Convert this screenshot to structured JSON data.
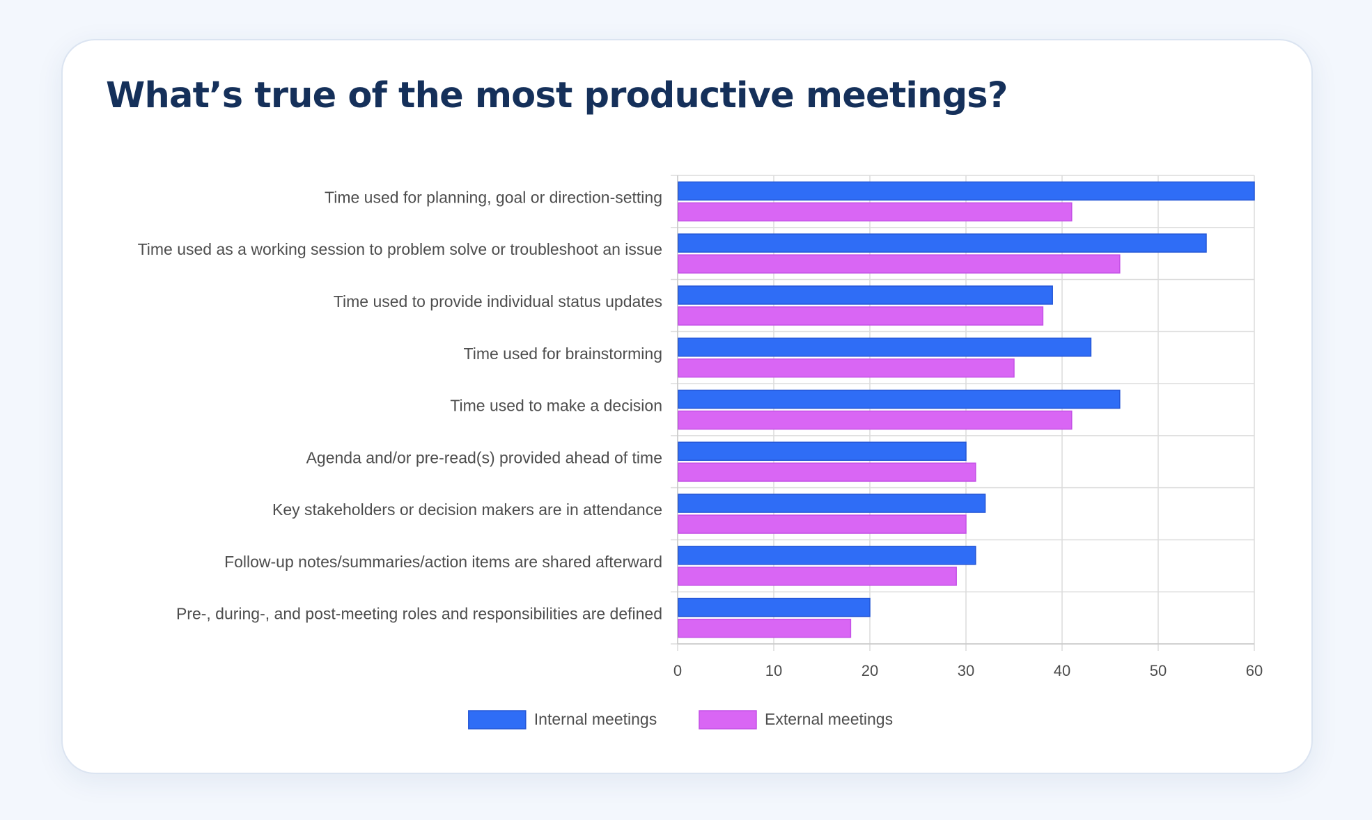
{
  "page": {
    "title": "What’s true of the most productive meetings?"
  },
  "chart_data": {
    "type": "bar",
    "orientation": "horizontal",
    "categories": [
      "Time used for planning, goal or direction-setting",
      "Time used as a working session to problem solve or troubleshoot an issue",
      "Time used to provide individual status updates",
      "Time used for brainstorming",
      "Time used to make a decision",
      "Agenda and/or pre-read(s) provided ahead of time",
      "Key stakeholders or decision makers are in attendance",
      "Follow-up notes/summaries/action items are shared afterward",
      "Pre-, during-, and post-meeting roles and responsibilities are defined"
    ],
    "series": [
      {
        "name": "Internal meetings",
        "color": "#2f6df6",
        "values": [
          60,
          55,
          39,
          43,
          46,
          30,
          32,
          31,
          20
        ]
      },
      {
        "name": "External meetings",
        "color": "#d966f4",
        "values": [
          41,
          46,
          38,
          35,
          41,
          31,
          30,
          29,
          18
        ]
      }
    ],
    "xlim": [
      0,
      60
    ],
    "xticks": [
      0,
      10,
      20,
      30,
      40,
      50,
      60
    ],
    "grid": true,
    "legend_position": "bottom-center"
  }
}
